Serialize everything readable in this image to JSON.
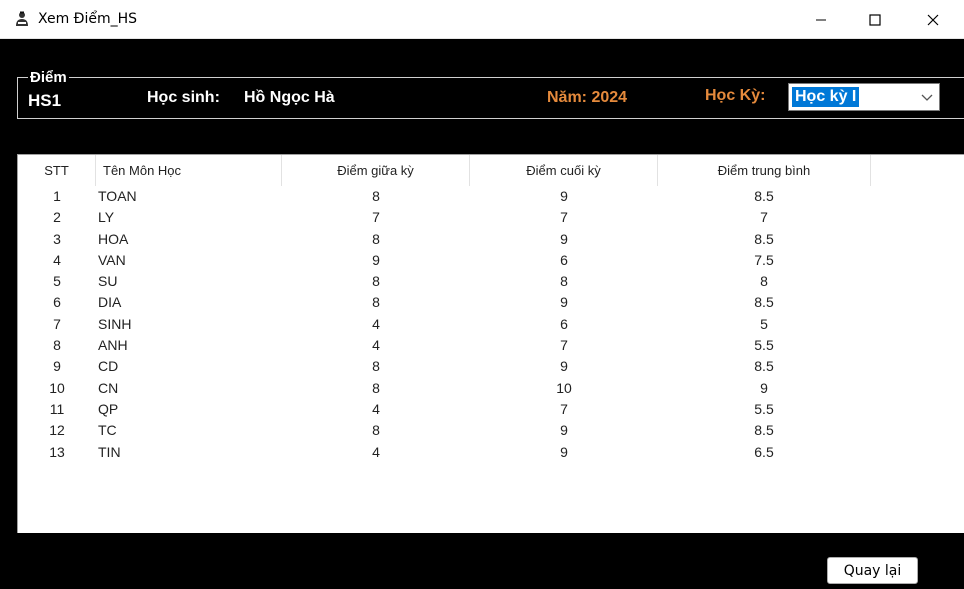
{
  "window": {
    "title": "Xem Điểm_HS",
    "controls": [
      "minimize-icon",
      "maximize-icon",
      "close-icon"
    ]
  },
  "header": {
    "group_label": "Điểm",
    "student_code": "HS1",
    "student_label": "Học sinh:",
    "student_name": "Hồ Ngọc Hà",
    "year_label": "Năm: 2024",
    "term_label": "Học Kỳ:",
    "term_value": "Học kỳ I"
  },
  "grid": {
    "columns": [
      "STT",
      "Tên Môn Học",
      "Điểm giữa kỳ",
      "Điểm cuối kỳ",
      "Điểm trung bình"
    ],
    "rows": [
      {
        "stt": "1",
        "mon": "TOAN",
        "gk": "8",
        "ck": "9",
        "tb": "8.5"
      },
      {
        "stt": "2",
        "mon": "LY",
        "gk": "7",
        "ck": "7",
        "tb": "7"
      },
      {
        "stt": "3",
        "mon": "HOA",
        "gk": "8",
        "ck": "9",
        "tb": "8.5"
      },
      {
        "stt": "4",
        "mon": "VAN",
        "gk": "9",
        "ck": "6",
        "tb": "7.5"
      },
      {
        "stt": "5",
        "mon": "SU",
        "gk": "8",
        "ck": "8",
        "tb": "8"
      },
      {
        "stt": "6",
        "mon": "DIA",
        "gk": "8",
        "ck": "9",
        "tb": "8.5"
      },
      {
        "stt": "7",
        "mon": "SINH",
        "gk": "4",
        "ck": "6",
        "tb": "5"
      },
      {
        "stt": "8",
        "mon": "ANH",
        "gk": "4",
        "ck": "7",
        "tb": "5.5"
      },
      {
        "stt": "9",
        "mon": "CD",
        "gk": "8",
        "ck": "9",
        "tb": "8.5"
      },
      {
        "stt": "10",
        "mon": "CN",
        "gk": "8",
        "ck": "10",
        "tb": "9"
      },
      {
        "stt": "11",
        "mon": "QP",
        "gk": "4",
        "ck": "7",
        "tb": "5.5"
      },
      {
        "stt": "12",
        "mon": "TC",
        "gk": "8",
        "ck": "9",
        "tb": "8.5"
      },
      {
        "stt": "13",
        "mon": "TIN",
        "gk": "4",
        "ck": "9",
        "tb": "6.5"
      }
    ]
  },
  "footer": {
    "back_label": "Quay lại"
  },
  "colors": {
    "background": "#000000",
    "accent_orange": "#e58a3c",
    "selection_blue": "#0078d7"
  }
}
